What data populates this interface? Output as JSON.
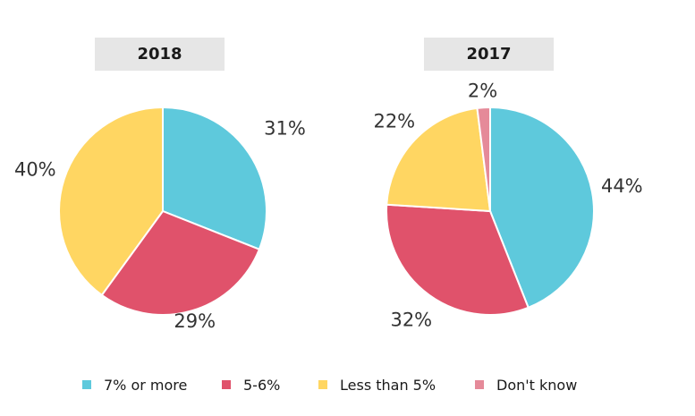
{
  "colors": {
    "seven_or_more": "#5ec9dc",
    "five_six": "#e0526b",
    "less_than_five": "#ffd662",
    "dont_know": "#e58a99"
  },
  "legend": [
    {
      "label": "7% or more",
      "color": "#5ec9dc"
    },
    {
      "label": "5-6%",
      "color": "#e0526b"
    },
    {
      "label": "Less than 5%",
      "color": "#ffd662"
    },
    {
      "label": "Don't know",
      "color": "#e58a99"
    }
  ],
  "chart_data": [
    {
      "type": "pie",
      "title": "2018",
      "categories": [
        "7% or more",
        "5-6%",
        "Less than 5%"
      ],
      "values": [
        31,
        29,
        40
      ],
      "labels": [
        "31%",
        "29%",
        "40%"
      ]
    },
    {
      "type": "pie",
      "title": "2017",
      "categories": [
        "7% or more",
        "5-6%",
        "Less than 5%",
        "Don't know"
      ],
      "values": [
        44,
        32,
        22,
        2
      ],
      "labels": [
        "44%",
        "32%",
        "22%",
        "2%"
      ]
    }
  ]
}
